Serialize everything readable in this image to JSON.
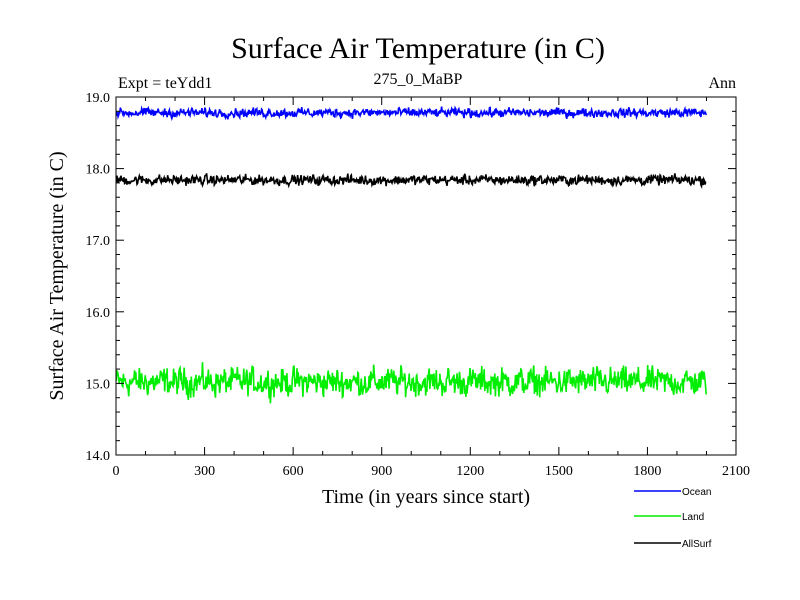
{
  "chart_data": {
    "type": "line",
    "title": "Surface Air Temperature (in C)",
    "subtitle_left": "Expt = teYdd1",
    "subtitle_center": "275_0_MaBP",
    "subtitle_right": "Ann",
    "xlabel": "Time (in years since start)",
    "ylabel": "Surface Air Temperature (in C)",
    "xlim": [
      0,
      2100
    ],
    "ylim": [
      14.0,
      19.0
    ],
    "x_ticks": [
      0,
      300,
      600,
      900,
      1200,
      1500,
      1800,
      2100
    ],
    "x_tick_labels": [
      "0",
      "300",
      "600",
      "900",
      "1200",
      "1500",
      "1800",
      "2100"
    ],
    "y_ticks": [
      14.0,
      15.0,
      16.0,
      17.0,
      18.0,
      19.0
    ],
    "y_tick_labels": [
      "14.0",
      "15.0",
      "16.0",
      "17.0",
      "18.0",
      "19.0"
    ],
    "x_range": [
      1,
      2000
    ],
    "legend_position": "bottom-right",
    "series": [
      {
        "name": "Ocean",
        "color": "#0000ff",
        "mean": 18.78,
        "amplitude": 0.09
      },
      {
        "name": "Land",
        "color": "#00ee00",
        "mean": 15.02,
        "amplitude": 0.28
      },
      {
        "name": "AllSurf",
        "color": "#000000",
        "mean": 17.84,
        "amplitude": 0.1
      }
    ]
  }
}
